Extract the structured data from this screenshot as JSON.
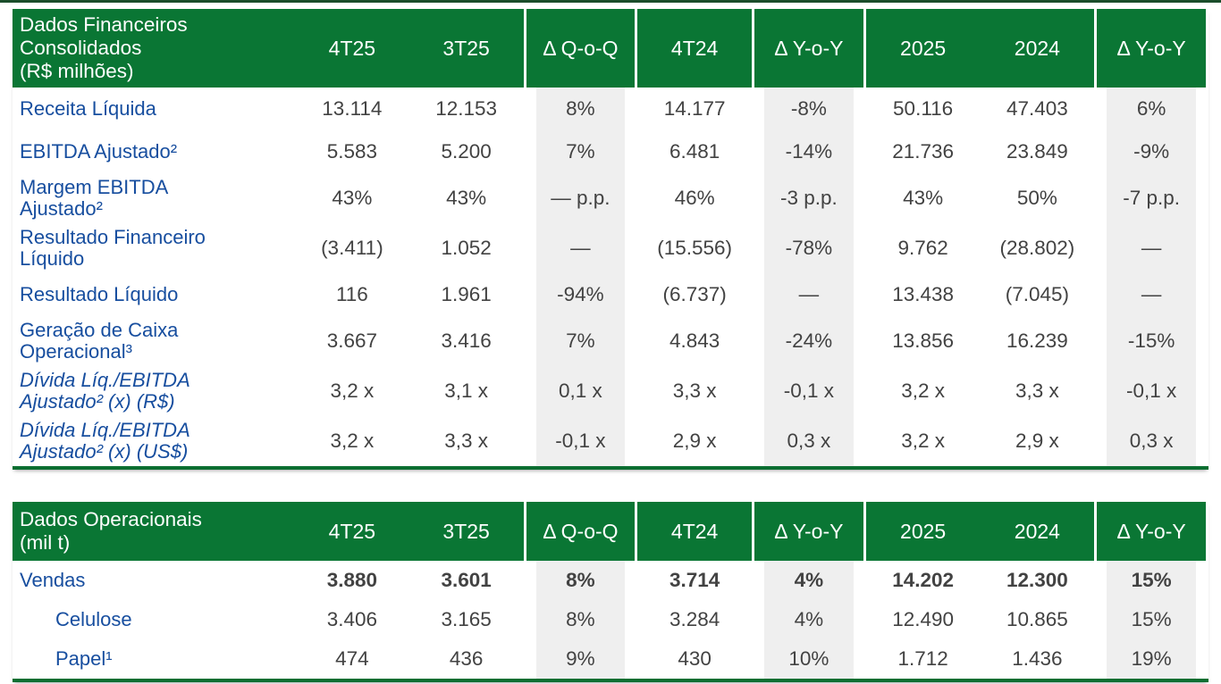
{
  "colors": {
    "header-green": "#0A7634",
    "border-green": "#0B6E31",
    "top-rule-green": "#1B4D2B",
    "label-blue": "#174E9F",
    "value-gray": "#424242",
    "band-gray": "#EFEFEF"
  },
  "tables": [
    {
      "title_lines": [
        "Dados Financeiros",
        "Consolidados",
        "(R$ milhões)"
      ],
      "columns": [
        "4T25",
        "3T25",
        "Δ Q-o-Q",
        "4T24",
        "Δ Y-o-Y",
        "2025",
        "2024",
        "Δ Y-o-Y"
      ],
      "delta_cols": [
        2,
        4,
        7
      ],
      "rows": [
        {
          "label": "Receita Líquida",
          "values": [
            "13.114",
            "12.153",
            "8%",
            "14.177",
            "-8%",
            "50.116",
            "47.403",
            "6%"
          ]
        },
        {
          "label": "EBITDA Ajustado²",
          "values": [
            "5.583",
            "5.200",
            "7%",
            "6.481",
            "-14%",
            "21.736",
            "23.849",
            "-9%"
          ]
        },
        {
          "label": "Margem EBITDA Ajustado²",
          "values": [
            "43%",
            "43%",
            "— p.p.",
            "46%",
            "-3 p.p.",
            "43%",
            "50%",
            "-7 p.p."
          ]
        },
        {
          "label": "Resultado Financeiro Líquido",
          "values": [
            "(3.411)",
            "1.052",
            "—",
            "(15.556)",
            "-78%",
            "9.762",
            "(28.802)",
            "—"
          ]
        },
        {
          "label": "Resultado Líquido",
          "values": [
            "116",
            "1.961",
            "-94%",
            "(6.737)",
            "—",
            "13.438",
            "(7.045)",
            "—"
          ]
        },
        {
          "label": "Geração de Caixa Operacional³",
          "values": [
            "3.667",
            "3.416",
            "7%",
            "4.843",
            "-24%",
            "13.856",
            "16.239",
            "-15%"
          ]
        },
        {
          "label": "Dívida Líq./EBITDA Ajustado² (x) (R$)",
          "italic": true,
          "values": [
            "3,2 x",
            "3,1 x",
            "0,1 x",
            "3,3 x",
            "-0,1 x",
            "3,2 x",
            "3,3 x",
            "-0,1 x"
          ]
        },
        {
          "label": "Dívida Líq./EBITDA Ajustado² (x) (US$)",
          "italic": true,
          "values": [
            "3,2 x",
            "3,3 x",
            "-0,1 x",
            "2,9 x",
            "0,3 x",
            "3,2 x",
            "2,9 x",
            "0,3 x"
          ]
        }
      ]
    },
    {
      "title_lines": [
        "Dados Operacionais",
        "(mil t)"
      ],
      "columns": [
        "4T25",
        "3T25",
        "Δ Q-o-Q",
        "4T24",
        "Δ Y-o-Y",
        "2025",
        "2024",
        "Δ Y-o-Y"
      ],
      "delta_cols": [
        2,
        4,
        7
      ],
      "rows": [
        {
          "label": "Vendas",
          "bold_values": true,
          "values": [
            "3.880",
            "3.601",
            "8%",
            "3.714",
            "4%",
            "14.202",
            "12.300",
            "15%"
          ]
        },
        {
          "label": "Celulose",
          "indent": true,
          "values": [
            "3.406",
            "3.165",
            "8%",
            "3.284",
            "4%",
            "12.490",
            "10.865",
            "15%"
          ]
        },
        {
          "label": "Papel¹",
          "indent": true,
          "values": [
            "474",
            "436",
            "9%",
            "430",
            "10%",
            "1.712",
            "1.436",
            "19%"
          ]
        }
      ]
    }
  ]
}
